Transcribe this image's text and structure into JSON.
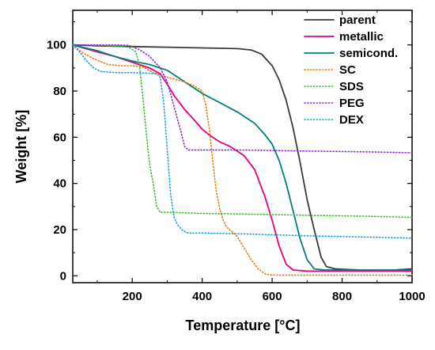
{
  "chart_data": {
    "type": "line",
    "xlabel": "Temperature [°C]",
    "ylabel": "Weight [%]",
    "xlim": [
      30,
      1000
    ],
    "ylim": [
      -3,
      115
    ],
    "x_ticks": [
      200,
      400,
      600,
      800,
      1000
    ],
    "x_tick_labels": [
      "200",
      "400",
      "600",
      "800",
      "1000"
    ],
    "y_ticks": [
      0,
      20,
      40,
      60,
      80,
      100
    ],
    "y_tick_labels": [
      "0",
      "20",
      "40",
      "60",
      "80",
      "100"
    ],
    "legend_position": "top-right",
    "grid": false,
    "series": [
      {
        "name": "parent",
        "color": "#3a3a3a",
        "dash": "solid",
        "points": [
          [
            30,
            100
          ],
          [
            100,
            99.6
          ],
          [
            200,
            99.3
          ],
          [
            300,
            99.0
          ],
          [
            400,
            98.7
          ],
          [
            500,
            98.4
          ],
          [
            540,
            97.8
          ],
          [
            570,
            96
          ],
          [
            600,
            91
          ],
          [
            620,
            85
          ],
          [
            640,
            76
          ],
          [
            660,
            64
          ],
          [
            680,
            49
          ],
          [
            700,
            33
          ],
          [
            720,
            20
          ],
          [
            740,
            8
          ],
          [
            755,
            4
          ],
          [
            780,
            3
          ],
          [
            850,
            2.5
          ],
          [
            900,
            2.3
          ],
          [
            950,
            2.5
          ],
          [
            1000,
            3.0
          ]
        ]
      },
      {
        "name": "metallic",
        "color": "#e6007e",
        "dash": "solid",
        "points": [
          [
            30,
            100
          ],
          [
            100,
            97
          ],
          [
            150,
            95
          ],
          [
            200,
            92.5
          ],
          [
            250,
            90
          ],
          [
            280,
            87.5
          ],
          [
            300,
            83
          ],
          [
            320,
            78
          ],
          [
            350,
            72
          ],
          [
            380,
            67
          ],
          [
            400,
            63.5
          ],
          [
            420,
            61
          ],
          [
            450,
            58
          ],
          [
            480,
            56
          ],
          [
            500,
            54
          ],
          [
            520,
            52
          ],
          [
            550,
            46
          ],
          [
            580,
            34
          ],
          [
            600,
            24
          ],
          [
            620,
            13
          ],
          [
            640,
            5
          ],
          [
            660,
            2.5
          ],
          [
            700,
            2
          ],
          [
            800,
            2
          ],
          [
            900,
            2
          ],
          [
            1000,
            2
          ]
        ]
      },
      {
        "name": "semicond.",
        "color": "#00807a",
        "dash": "solid",
        "points": [
          [
            30,
            100
          ],
          [
            100,
            97.5
          ],
          [
            150,
            95
          ],
          [
            200,
            93
          ],
          [
            250,
            91.5
          ],
          [
            300,
            89
          ],
          [
            350,
            84
          ],
          [
            400,
            79
          ],
          [
            450,
            75
          ],
          [
            500,
            71
          ],
          [
            550,
            66
          ],
          [
            580,
            61
          ],
          [
            600,
            57
          ],
          [
            620,
            50
          ],
          [
            640,
            40
          ],
          [
            660,
            28
          ],
          [
            680,
            16
          ],
          [
            700,
            7
          ],
          [
            720,
            3
          ],
          [
            750,
            2.5
          ],
          [
            800,
            2.5
          ],
          [
            900,
            2.5
          ],
          [
            1000,
            2.5
          ]
        ]
      },
      {
        "name": "SC",
        "color": "#f07a00",
        "dash": "dotted",
        "points": [
          [
            30,
            100
          ],
          [
            60,
            96.5
          ],
          [
            90,
            94
          ],
          [
            130,
            91.5
          ],
          [
            170,
            91
          ],
          [
            200,
            91
          ],
          [
            230,
            90.5
          ],
          [
            260,
            88
          ],
          [
            300,
            86
          ],
          [
            350,
            84
          ],
          [
            380,
            82
          ],
          [
            400,
            80
          ],
          [
            410,
            74
          ],
          [
            420,
            64
          ],
          [
            430,
            50
          ],
          [
            440,
            37
          ],
          [
            450,
            29
          ],
          [
            460,
            24
          ],
          [
            470,
            21
          ],
          [
            490,
            18.5
          ],
          [
            500,
            17
          ],
          [
            520,
            12
          ],
          [
            540,
            7
          ],
          [
            560,
            3
          ],
          [
            580,
            0.8
          ],
          [
            600,
            0.3
          ],
          [
            700,
            0.3
          ],
          [
            800,
            0.3
          ],
          [
            900,
            0.3
          ],
          [
            1000,
            0.3
          ]
        ]
      },
      {
        "name": "SDS",
        "color": "#39c02a",
        "dash": "dotted",
        "points": [
          [
            30,
            100
          ],
          [
            100,
            99.8
          ],
          [
            150,
            99.5
          ],
          [
            190,
            99
          ],
          [
            210,
            97
          ],
          [
            220,
            92
          ],
          [
            230,
            78
          ],
          [
            240,
            62
          ],
          [
            250,
            48
          ],
          [
            260,
            40
          ],
          [
            270,
            30
          ],
          [
            280,
            27.5
          ],
          [
            300,
            27.5
          ],
          [
            400,
            27
          ],
          [
            500,
            26.8
          ],
          [
            600,
            26.5
          ],
          [
            700,
            26.2
          ],
          [
            800,
            26
          ],
          [
            900,
            25.7
          ],
          [
            1000,
            25.3
          ]
        ]
      },
      {
        "name": "PEG",
        "color": "#8a2be2",
        "dash": "dotted",
        "points": [
          [
            30,
            100
          ],
          [
            100,
            100
          ],
          [
            150,
            100
          ],
          [
            190,
            99.8
          ],
          [
            220,
            98
          ],
          [
            250,
            95
          ],
          [
            280,
            90
          ],
          [
            300,
            84
          ],
          [
            320,
            73
          ],
          [
            340,
            62
          ],
          [
            350,
            56
          ],
          [
            360,
            54.5
          ],
          [
            400,
            54.5
          ],
          [
            500,
            54.5
          ],
          [
            600,
            54.3
          ],
          [
            700,
            54
          ],
          [
            800,
            53.8
          ],
          [
            900,
            53.6
          ],
          [
            1000,
            53.3
          ]
        ]
      },
      {
        "name": "DEX",
        "color": "#1ea0e0",
        "dash": "dotted",
        "points": [
          [
            30,
            100
          ],
          [
            50,
            97
          ],
          [
            70,
            93
          ],
          [
            90,
            90
          ],
          [
            110,
            88.5
          ],
          [
            150,
            88
          ],
          [
            200,
            88
          ],
          [
            240,
            87.8
          ],
          [
            270,
            87.5
          ],
          [
            280,
            86
          ],
          [
            290,
            75
          ],
          [
            300,
            55
          ],
          [
            310,
            35
          ],
          [
            320,
            25
          ],
          [
            330,
            22
          ],
          [
            345,
            19.5
          ],
          [
            360,
            18.5
          ],
          [
            400,
            18.5
          ],
          [
            500,
            18.2
          ],
          [
            600,
            17.8
          ],
          [
            700,
            17.3
          ],
          [
            800,
            17
          ],
          [
            900,
            16.7
          ],
          [
            1000,
            16.3
          ]
        ]
      }
    ]
  }
}
